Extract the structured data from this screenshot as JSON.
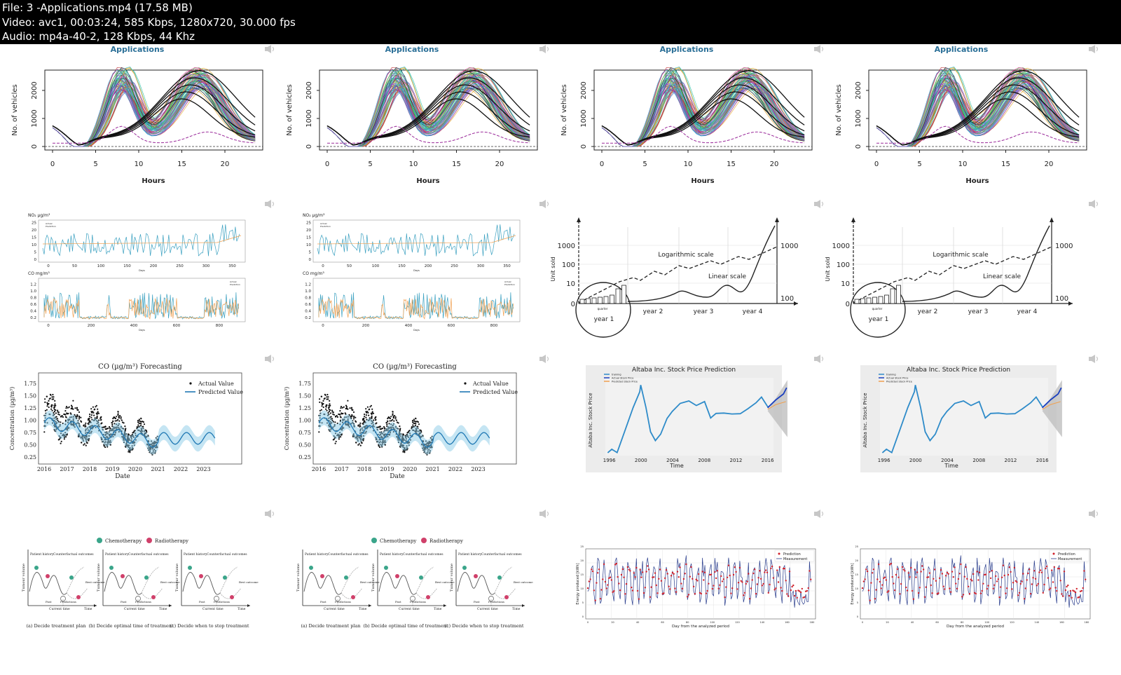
{
  "header": {
    "line1": "File: 3 -Applications.mp4 (17.58 MB)",
    "line2": "Video: avc1, 00:03:24, 585 Kbps, 1280x720, 30.000 fps",
    "line3": "Audio: mp4a-40-2, 128 Kbps, 44 Khz"
  },
  "slide_title": "Applications",
  "traffic": {
    "ylabel": "No. of vehicles",
    "xlabel": "Hours",
    "yticks": [
      "0",
      "1000",
      "2000"
    ],
    "xticks": [
      "0",
      "5",
      "10",
      "15",
      "20"
    ]
  },
  "pollution": {
    "top_label": "NO₂ µg/m³",
    "top_yticks": [
      "0",
      "5",
      "10",
      "15",
      "20",
      "25"
    ],
    "top_xticks": [
      "0",
      "50",
      "100",
      "150",
      "200",
      "250",
      "300",
      "350"
    ],
    "bottom_label": "CO mg/m³",
    "bottom_yticks": [
      "0.2",
      "0.4",
      "0.6",
      "0.8",
      "1.0",
      "1.2"
    ],
    "bottom_xticks": [
      "0",
      "200",
      "400",
      "600",
      "800"
    ],
    "legend_a": "Actual",
    "legend_b": "Prediction",
    "xunit": "Days"
  },
  "logscale": {
    "ylabel": "Unit sold",
    "left_ticks": [
      "0",
      "10",
      "100",
      "1000"
    ],
    "right_ticks": [
      "100",
      "1000"
    ],
    "log_label": "Logarithmic scale",
    "lin_label": "Linear scale",
    "years": [
      "year 1",
      "year 2",
      "year 3",
      "year 4"
    ],
    "quarter": "quarter"
  },
  "co_forecast": {
    "title": "CO (µg/m³) Forecasting",
    "ylabel": "Concentration (µg/m³)",
    "xlabel": "Date",
    "yticks": [
      "0.25",
      "0.50",
      "0.75",
      "1.00",
      "1.25",
      "1.50",
      "1.75"
    ],
    "xticks": [
      "2016",
      "2017",
      "2018",
      "2019",
      "2020",
      "2021",
      "2022",
      "2023"
    ],
    "legend_actual": "Actual Value",
    "legend_pred": "Predicted Value"
  },
  "stock": {
    "title": "Altaba Inc. Stock Price Prediction",
    "ylabel": "Altaba Inc. Stock Price",
    "xlabel": "Time",
    "xticks": [
      "1996",
      "2000",
      "2004",
      "2008",
      "2012",
      "2016"
    ],
    "legend": [
      "training",
      "Actual Stock Price",
      "Predicted Stock Price"
    ]
  },
  "treatment": {
    "legend_chemo": "Chemotherapy",
    "legend_radio": "Radiotherapy",
    "ylabel": "Tumour volume",
    "panel_a": "(a) Decide treatment plan",
    "panel_b": "(b) Decide optimal time of treatment",
    "panel_c": "(c) Decide when to stop treatment",
    "history": "Patient history",
    "counterfactual": "Counterfactual outcomes",
    "past": "Past",
    "predictions": "Predictions",
    "current_time": "Current time",
    "time": "Time",
    "best_outcome": "Best outcome"
  },
  "energy": {
    "ylabel": "Energy produced [kWh]",
    "xlabel": "Day from the analyzed period",
    "legend_pred": "Prediction",
    "legend_meas": "Measurement",
    "xticks": [
      "0",
      "20",
      "40",
      "60",
      "80",
      "100",
      "120",
      "140",
      "160",
      "180"
    ],
    "yticks": [
      "0",
      "5",
      "10",
      "15",
      "20",
      "25"
    ]
  },
  "colors": {
    "title": "#2a6f97",
    "teal": "#3aa0c0",
    "orange": "#f0a050",
    "blue": "#2e8bc9",
    "red": "#d0202a"
  },
  "icons": {
    "speaker": "speaker-icon"
  }
}
